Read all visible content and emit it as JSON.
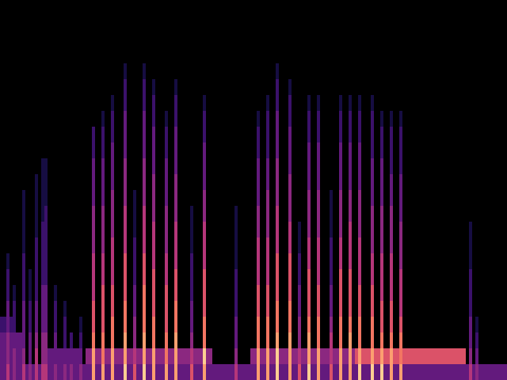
{
  "chart_data": {
    "type": "heatmap",
    "xlim": [
      0,
      160
    ],
    "ylim": [
      0,
      24
    ],
    "tick_labels": false,
    "grid": false,
    "color_range": [
      0,
      10
    ],
    "bands": [
      {
        "row": 0,
        "from": 0,
        "to": 160,
        "value": 3
      },
      {
        "row": 1,
        "from": 0,
        "to": 7,
        "value": 3
      },
      {
        "row": 2,
        "from": 0,
        "to": 8,
        "value": 3
      },
      {
        "row": 3,
        "from": 0,
        "to": 5,
        "value": 2
      },
      {
        "row": 1,
        "from": 15,
        "to": 26,
        "value": 3
      },
      {
        "row": 1,
        "from": 27,
        "to": 67,
        "value": 4
      },
      {
        "row": 0,
        "from": 27,
        "to": 67,
        "value": 3
      },
      {
        "row": 1,
        "from": 79,
        "to": 130,
        "value": 4
      },
      {
        "row": 0,
        "from": 79,
        "to": 130,
        "value": 3
      },
      {
        "row": 1,
        "from": 112,
        "to": 147,
        "value": 6
      }
    ],
    "columns": [
      {
        "x": 2,
        "values": [
          5,
          4,
          4,
          3,
          3,
          2,
          2,
          1
        ]
      },
      {
        "x": 4,
        "values": [
          4,
          4,
          3,
          2,
          2,
          1
        ]
      },
      {
        "x": 7,
        "values": [
          5,
          4,
          3,
          3,
          3,
          2,
          2,
          2,
          1,
          1,
          1,
          1
        ]
      },
      {
        "x": 9,
        "values": [
          4,
          3,
          3,
          2,
          2,
          1,
          1
        ]
      },
      {
        "x": 11,
        "values": [
          5,
          5,
          4,
          3,
          3,
          2,
          2,
          2,
          2,
          1,
          1,
          1,
          1
        ]
      },
      {
        "x": 13,
        "values": [
          5,
          4,
          4,
          3,
          3,
          3,
          2,
          2,
          2,
          2,
          1,
          1,
          1,
          1
        ]
      },
      {
        "x": 14,
        "values": [
          5,
          4,
          4,
          3,
          3,
          3,
          2,
          2,
          2,
          2,
          2,
          1,
          1,
          1
        ]
      },
      {
        "x": 17,
        "values": [
          4,
          3,
          3,
          2,
          2,
          1
        ]
      },
      {
        "x": 20,
        "values": [
          4,
          3,
          2,
          2,
          1
        ]
      },
      {
        "x": 22,
        "values": [
          4,
          3,
          2
        ]
      },
      {
        "x": 25,
        "values": [
          4,
          3,
          2,
          1
        ]
      },
      {
        "x": 29,
        "values": [
          8,
          8,
          7,
          6,
          6,
          5,
          5,
          5,
          4,
          4,
          4,
          3,
          3,
          3,
          2,
          2
        ]
      },
      {
        "x": 32,
        "values": [
          8,
          7,
          7,
          6,
          6,
          6,
          5,
          5,
          4,
          4,
          4,
          3,
          3,
          3,
          2,
          2,
          1
        ]
      },
      {
        "x": 35,
        "values": [
          8,
          8,
          7,
          7,
          6,
          6,
          5,
          5,
          5,
          4,
          4,
          4,
          3,
          3,
          3,
          2,
          2,
          1
        ]
      },
      {
        "x": 39,
        "values": [
          9,
          8,
          8,
          7,
          7,
          6,
          6,
          6,
          5,
          5,
          5,
          4,
          4,
          4,
          3,
          3,
          3,
          2,
          2,
          1
        ]
      },
      {
        "x": 42,
        "values": [
          6,
          5,
          4,
          4,
          3,
          3,
          2,
          2,
          2,
          1,
          1,
          1
        ]
      },
      {
        "x": 45,
        "values": [
          9,
          8,
          8,
          7,
          7,
          7,
          6,
          6,
          5,
          5,
          5,
          4,
          4,
          4,
          3,
          3,
          3,
          2,
          2,
          1
        ]
      },
      {
        "x": 48,
        "values": [
          8,
          8,
          7,
          7,
          6,
          6,
          6,
          5,
          5,
          5,
          4,
          4,
          4,
          3,
          3,
          3,
          2,
          2,
          1
        ]
      },
      {
        "x": 52,
        "values": [
          8,
          7,
          7,
          6,
          6,
          6,
          5,
          5,
          4,
          4,
          4,
          3,
          3,
          3,
          2,
          2,
          1
        ]
      },
      {
        "x": 55,
        "values": [
          8,
          8,
          8,
          7,
          7,
          6,
          6,
          5,
          5,
          5,
          4,
          4,
          4,
          3,
          3,
          3,
          2,
          2,
          1
        ]
      },
      {
        "x": 60,
        "values": [
          6,
          5,
          4,
          3,
          3,
          2,
          2,
          2,
          1,
          1,
          1
        ]
      },
      {
        "x": 64,
        "values": [
          8,
          9,
          7,
          7,
          6,
          6,
          6,
          5,
          5,
          5,
          4,
          4,
          3,
          3,
          3,
          2,
          2,
          1
        ]
      },
      {
        "x": 74,
        "values": [
          5,
          4,
          3,
          3,
          2,
          2,
          2,
          1,
          1,
          1,
          1
        ]
      },
      {
        "x": 81,
        "values": [
          8,
          8,
          7,
          7,
          6,
          6,
          5,
          5,
          5,
          4,
          4,
          3,
          3,
          3,
          2,
          2,
          1
        ]
      },
      {
        "x": 84,
        "values": [
          8,
          8,
          7,
          7,
          6,
          6,
          5,
          5,
          5,
          4,
          4,
          4,
          3,
          3,
          2,
          2,
          2,
          1
        ]
      },
      {
        "x": 87,
        "values": [
          9,
          9,
          8,
          7,
          7,
          6,
          6,
          6,
          5,
          5,
          5,
          4,
          4,
          4,
          3,
          3,
          3,
          2,
          2,
          1
        ]
      },
      {
        "x": 91,
        "values": [
          8,
          8,
          8,
          7,
          7,
          6,
          6,
          6,
          5,
          5,
          4,
          4,
          4,
          3,
          3,
          3,
          2,
          2,
          1
        ]
      },
      {
        "x": 94,
        "values": [
          6,
          5,
          4,
          4,
          3,
          3,
          2,
          2,
          1,
          1
        ]
      },
      {
        "x": 97,
        "values": [
          9,
          8,
          8,
          7,
          6,
          6,
          6,
          5,
          5,
          4,
          4,
          4,
          3,
          3,
          3,
          2,
          2,
          1
        ]
      },
      {
        "x": 100,
        "values": [
          8,
          8,
          7,
          7,
          6,
          6,
          5,
          5,
          5,
          4,
          4,
          4,
          3,
          3,
          3,
          2,
          2,
          1
        ]
      },
      {
        "x": 104,
        "values": [
          6,
          5,
          5,
          4,
          3,
          3,
          2,
          2,
          2,
          1,
          1,
          1
        ]
      },
      {
        "x": 107,
        "values": [
          8,
          8,
          7,
          7,
          6,
          6,
          6,
          5,
          5,
          4,
          4,
          4,
          3,
          3,
          3,
          2,
          2,
          1
        ]
      },
      {
        "x": 110,
        "values": [
          8,
          8,
          8,
          7,
          6,
          6,
          6,
          5,
          5,
          5,
          4,
          4,
          3,
          3,
          3,
          2,
          2,
          1
        ]
      },
      {
        "x": 113,
        "values": [
          9,
          8,
          7,
          7,
          6,
          6,
          5,
          5,
          5,
          4,
          4,
          4,
          3,
          3,
          3,
          2,
          2,
          1
        ]
      },
      {
        "x": 117,
        "values": [
          9,
          8,
          7,
          7,
          6,
          6,
          5,
          5,
          4,
          4,
          4,
          3,
          3,
          3,
          2,
          2,
          2,
          1
        ]
      },
      {
        "x": 120,
        "values": [
          9,
          8,
          7,
          6,
          6,
          5,
          5,
          5,
          4,
          4,
          4,
          3,
          3,
          3,
          2,
          2,
          1
        ]
      },
      {
        "x": 123,
        "values": [
          8,
          8,
          7,
          6,
          6,
          5,
          5,
          5,
          4,
          4,
          4,
          3,
          3,
          2,
          2,
          2,
          1
        ]
      },
      {
        "x": 126,
        "values": [
          8,
          7,
          7,
          6,
          5,
          5,
          5,
          4,
          4,
          4,
          3,
          3,
          3,
          2,
          2,
          2,
          1
        ]
      },
      {
        "x": 148,
        "values": [
          5,
          4,
          3,
          3,
          2,
          2,
          2,
          1,
          1,
          1
        ]
      },
      {
        "x": 150,
        "values": [
          4,
          3,
          2,
          1
        ]
      }
    ]
  }
}
